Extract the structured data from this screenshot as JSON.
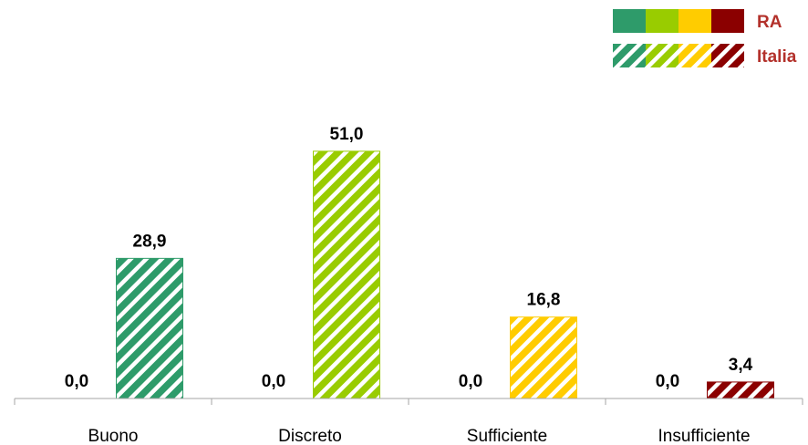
{
  "chart_data": {
    "type": "bar",
    "categories": [
      "Buono",
      "Discreto",
      "Sufficiente",
      "Insufficiente"
    ],
    "series": [
      {
        "name": "RA",
        "pattern": "solid",
        "values": [
          0.0,
          0.0,
          0.0,
          0.0
        ],
        "value_labels": [
          "0,0",
          "0,0",
          "0,0",
          "0,0"
        ]
      },
      {
        "name": "Italia",
        "pattern": "hatched",
        "values": [
          28.9,
          51.0,
          16.8,
          3.4
        ],
        "value_labels": [
          "28,9",
          "51,0",
          "16,8",
          "3,4"
        ]
      }
    ],
    "category_colors": [
      "#2e9b6a",
      "#99cc00",
      "#ffcc00",
      "#8b0000"
    ],
    "legend_text_color": "#b3312b",
    "legend_position": "top-right",
    "ylim": [
      0,
      60
    ],
    "grid": false,
    "title": "",
    "xlabel": "",
    "ylabel": ""
  }
}
